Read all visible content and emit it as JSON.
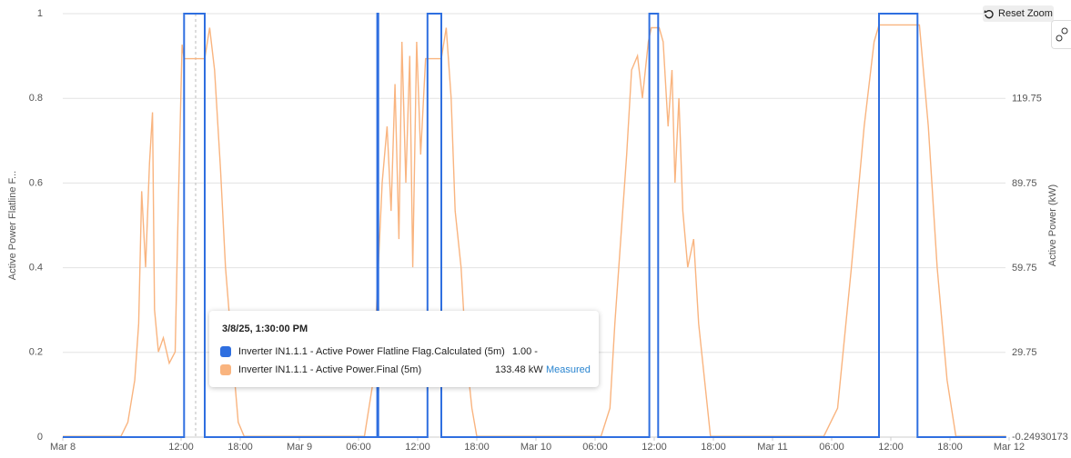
{
  "chart_data": {
    "type": "line",
    "y_label": "Active Power Flatline F...",
    "y2_label": "Active Power (kW)",
    "xlim": [
      0,
      96
    ],
    "xticks": [
      {
        "value": 0,
        "label": "Mar 8"
      },
      {
        "value": 12,
        "label": "12:00"
      },
      {
        "value": 18,
        "label": "18:00"
      },
      {
        "value": 24,
        "label": "Mar 9"
      },
      {
        "value": 30,
        "label": "06:00"
      },
      {
        "value": 36,
        "label": "12:00"
      },
      {
        "value": 42,
        "label": "18:00"
      },
      {
        "value": 48,
        "label": "Mar 10"
      },
      {
        "value": 54,
        "label": "06:00"
      },
      {
        "value": 60,
        "label": "12:00"
      },
      {
        "value": 66,
        "label": "18:00"
      },
      {
        "value": 72,
        "label": "Mar 11"
      },
      {
        "value": 78,
        "label": "06:00"
      },
      {
        "value": 84,
        "label": "12:00"
      },
      {
        "value": 90,
        "label": "18:00"
      },
      {
        "value": 96,
        "label": "Mar 12"
      }
    ],
    "ylim": [
      0,
      1
    ],
    "yticks": [
      0,
      0.2,
      0.4,
      0.6,
      0.8,
      1
    ],
    "y2lim": [
      -0.24930173,
      150
    ],
    "y2ticks": [
      -0.24930173,
      29.75,
      59.75,
      89.75,
      119.75
    ],
    "grid": true,
    "series": [
      {
        "name": "Inverter IN1.1.1 - Active Power Flatline Flag.Calculated (5m)",
        "color": "#2f6fe0",
        "x": [
          0,
          12.3,
          12.3,
          14.4,
          14.4,
          31.9,
          31.9,
          32.0,
          32.0,
          37.0,
          37.0,
          38.4,
          38.4,
          59.5,
          59.5,
          60.4,
          60.4,
          82.8,
          82.8,
          86.7,
          86.7,
          95.7
        ],
        "values": [
          0,
          0,
          1,
          1,
          0,
          0,
          1,
          1,
          0,
          0,
          1,
          1,
          0,
          0,
          1,
          1,
          0,
          0,
          1,
          1,
          0,
          0
        ]
      },
      {
        "name": "Inverter IN1.1.1 - Active Power.Final (5m)",
        "color": "#f9b47f",
        "axis": "y2",
        "x": [
          0,
          5.9,
          6.6,
          7.3,
          7.7,
          8.0,
          8.4,
          8.8,
          9.1,
          9.3,
          9.7,
          10.2,
          10.8,
          11.4,
          11.7,
          12.1,
          12.3,
          14.4,
          14.9,
          15.4,
          16.0,
          16.5,
          17.2,
          17.8,
          18.4,
          30.6,
          31.5,
          32.0,
          32.4,
          32.9,
          33.3,
          33.7,
          34.1,
          34.4,
          34.8,
          35.2,
          35.5,
          35.9,
          36.3,
          36.8,
          38.4,
          38.9,
          39.4,
          39.8,
          40.4,
          40.9,
          41.5,
          42.0,
          54.6,
          55.5,
          56.0,
          56.6,
          57.2,
          57.7,
          58.3,
          58.8,
          59.4,
          59.7,
          60.5,
          60.9,
          61.4,
          61.8,
          62.1,
          62.5,
          62.9,
          63.4,
          64.0,
          64.5,
          65.1,
          65.7,
          77.2,
          78.6,
          80.0,
          81.3,
          82.3,
          82.8,
          86.9,
          87.8,
          88.7,
          89.7,
          90.6,
          95.7
        ],
        "values": [
          0,
          0,
          5,
          20,
          40,
          87,
          60,
          97,
          115,
          45,
          30,
          35,
          26,
          30,
          80,
          139,
          134,
          134,
          145,
          130,
          95,
          60,
          30,
          5,
          0,
          0,
          20,
          60,
          90,
          110,
          80,
          125,
          70,
          140,
          90,
          135,
          60,
          140,
          100,
          134,
          134,
          145,
          120,
          80,
          60,
          30,
          10,
          0,
          0,
          10,
          40,
          70,
          100,
          130,
          135,
          120,
          140,
          145,
          145,
          140,
          110,
          130,
          90,
          120,
          80,
          60,
          70,
          40,
          20,
          0,
          0,
          10,
          60,
          110,
          140,
          146,
          146,
          110,
          60,
          20,
          0,
          0
        ]
      }
    ]
  },
  "tooltip": {
    "title": "3/8/25, 1:30:00 PM",
    "rows": [
      {
        "value": "1.00 -"
      },
      {
        "value": "133.48 kW",
        "status": "Measured"
      }
    ]
  },
  "reset_zoom": "Reset Zoom"
}
